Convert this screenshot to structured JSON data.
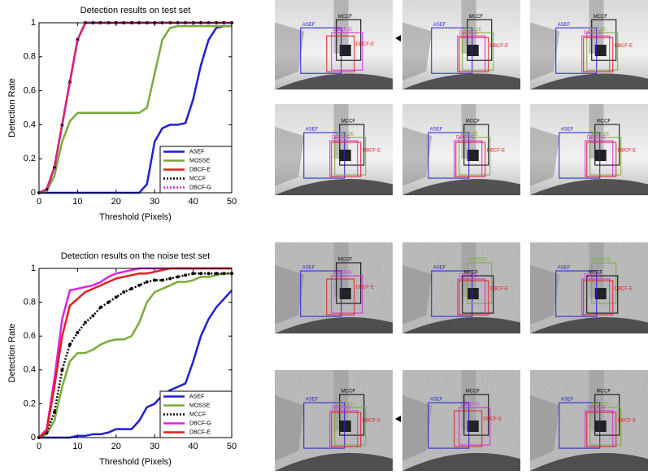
{
  "chart_data": [
    {
      "type": "line",
      "title": "Detection results on test set",
      "xlabel": "Threshold (Pixels)",
      "ylabel": "Detection Rate",
      "x": [
        0,
        2,
        4,
        6,
        8,
        10,
        12,
        14,
        16,
        18,
        20,
        22,
        24,
        26,
        28,
        30,
        32,
        34,
        36,
        38,
        40,
        42,
        44,
        46,
        48,
        50
      ],
      "xlim": [
        0,
        50
      ],
      "ylim": [
        0,
        1
      ],
      "xticks": [
        0,
        10,
        20,
        30,
        40,
        50
      ],
      "yticks": [
        0,
        0.2,
        0.4,
        0.6,
        0.8,
        1
      ],
      "legend": "lower right",
      "series": [
        {
          "name": "ASEF",
          "color": "#1f1fd6",
          "linestyle": "solid",
          "values": [
            0,
            0,
            0,
            0,
            0,
            0,
            0,
            0,
            0,
            0,
            0,
            0,
            0,
            0,
            0.05,
            0.3,
            0.38,
            0.4,
            0.4,
            0.41,
            0.55,
            0.75,
            0.9,
            0.97,
            0.98,
            0.98
          ]
        },
        {
          "name": "MOSSE",
          "color": "#7aaa3a",
          "linestyle": "solid",
          "values": [
            0,
            0.01,
            0.1,
            0.3,
            0.42,
            0.47,
            0.47,
            0.47,
            0.47,
            0.47,
            0.47,
            0.47,
            0.47,
            0.47,
            0.5,
            0.7,
            0.9,
            0.97,
            0.98,
            0.98,
            0.98,
            0.98,
            0.98,
            0.98,
            0.98,
            0.98
          ]
        },
        {
          "name": "DBCF-E",
          "color": "#e02020",
          "linestyle": "solid",
          "values": [
            0,
            0.02,
            0.15,
            0.4,
            0.65,
            0.9,
            1,
            1,
            1,
            1,
            1,
            1,
            1,
            1,
            1,
            1,
            1,
            1,
            1,
            1,
            1,
            1,
            1,
            1,
            1,
            1
          ]
        },
        {
          "name": "MCCF",
          "color": "#000000",
          "linestyle": "dotted",
          "marker": "dot",
          "values": [
            0,
            0.02,
            0.15,
            0.4,
            0.65,
            0.9,
            1,
            1,
            1,
            1,
            1,
            1,
            1,
            1,
            1,
            1,
            1,
            1,
            1,
            1,
            1,
            1,
            1,
            1,
            1,
            1
          ]
        },
        {
          "name": "DBCF-G",
          "color": "#e020e0",
          "linestyle": "dotted",
          "values": [
            0,
            0.02,
            0.15,
            0.4,
            0.65,
            0.9,
            1,
            1,
            1,
            1,
            1,
            1,
            1,
            1,
            1,
            1,
            1,
            1,
            1,
            1,
            1,
            1,
            1,
            1,
            1,
            1
          ]
        }
      ]
    },
    {
      "type": "line",
      "title": "Detection results on the noise test set",
      "xlabel": "Threshold (Pixels)",
      "ylabel": "Detection Rate",
      "x": [
        0,
        2,
        4,
        6,
        8,
        10,
        12,
        14,
        16,
        18,
        20,
        22,
        24,
        26,
        28,
        30,
        32,
        34,
        36,
        38,
        40,
        42,
        44,
        46,
        48,
        50
      ],
      "xlim": [
        0,
        50
      ],
      "ylim": [
        0,
        1
      ],
      "xticks": [
        0,
        10,
        20,
        30,
        40,
        50
      ],
      "yticks": [
        0,
        0.2,
        0.4,
        0.6,
        0.8,
        1
      ],
      "legend": "lower right",
      "series": [
        {
          "name": "ASEF",
          "color": "#1f1fd6",
          "linestyle": "solid",
          "values": [
            0,
            0,
            0,
            0,
            0,
            0.01,
            0.01,
            0.02,
            0.02,
            0.03,
            0.05,
            0.05,
            0.05,
            0.1,
            0.18,
            0.2,
            0.25,
            0.28,
            0.3,
            0.32,
            0.45,
            0.6,
            0.7,
            0.77,
            0.82,
            0.87
          ]
        },
        {
          "name": "MOSSE",
          "color": "#7aaa3a",
          "linestyle": "solid",
          "values": [
            0,
            0.02,
            0.1,
            0.3,
            0.45,
            0.5,
            0.5,
            0.52,
            0.55,
            0.57,
            0.58,
            0.58,
            0.6,
            0.68,
            0.8,
            0.86,
            0.88,
            0.9,
            0.92,
            0.92,
            0.93,
            0.95,
            0.95,
            0.96,
            0.97,
            0.97
          ]
        },
        {
          "name": "MCCF",
          "color": "#000000",
          "linestyle": "dotted",
          "marker": "dot",
          "values": [
            0,
            0.03,
            0.15,
            0.4,
            0.55,
            0.62,
            0.68,
            0.72,
            0.77,
            0.8,
            0.83,
            0.86,
            0.88,
            0.9,
            0.92,
            0.93,
            0.93,
            0.94,
            0.95,
            0.96,
            0.97,
            0.97,
            0.97,
            0.97,
            0.97,
            0.97
          ]
        },
        {
          "name": "DBCF-G",
          "color": "#e020e0",
          "linestyle": "solid",
          "values": [
            0,
            0.05,
            0.35,
            0.7,
            0.87,
            0.88,
            0.89,
            0.9,
            0.92,
            0.95,
            0.97,
            0.98,
            0.99,
            1,
            1,
            1,
            1,
            1,
            1,
            1,
            1,
            1,
            1,
            1,
            1,
            1
          ]
        },
        {
          "name": "DBCF-E",
          "color": "#e02020",
          "linestyle": "solid",
          "values": [
            0,
            0.04,
            0.3,
            0.6,
            0.78,
            0.82,
            0.86,
            0.88,
            0.9,
            0.92,
            0.94,
            0.95,
            0.96,
            0.97,
            0.97,
            0.98,
            0.99,
            1,
            1,
            1,
            1,
            1,
            1,
            1,
            1,
            1
          ]
        }
      ]
    }
  ],
  "panels": [
    [
      "ASEF",
      "MCCF",
      "DBCF-G",
      "DBCF-E"
    ],
    [
      "ASEF",
      "MCCF",
      "MOSSE",
      "DBCF-G",
      "DBCF-E"
    ],
    [
      "ASEF",
      "MCCF",
      "MOSSE",
      "DBCF-G",
      "DBCF-E"
    ],
    [
      "ASEF",
      "MCCF",
      "MOSSE",
      "DBCF-G",
      "DBCF-E"
    ],
    [
      "ASEF",
      "MCCF",
      "MOSSE",
      "DBCF-G",
      "DBCF-E"
    ],
    [
      "ASEF",
      "MCCF",
      "MOSSE",
      "DBCF-G",
      "DBCF-E"
    ],
    [
      "ASEF",
      "MCCF",
      "DBCF-G",
      "DBCF-E"
    ],
    [
      "ASEF",
      "MOSSE",
      "MCCF",
      "DBCF-G",
      "DBCF-E"
    ],
    [
      "ASEF",
      "MOSSE",
      "MCCF",
      "DBCF-G",
      "DBCF-E"
    ],
    [
      "ASEF",
      "MCCF",
      "MOSSE",
      "DBCF-G",
      "DBCF-E"
    ],
    [
      "ASEF",
      "MCCF",
      "DBCF-G",
      "DBCF-E"
    ],
    [
      "ASEF",
      "MCCF",
      "MOSSE",
      "DBCF-G",
      "DBCF-E"
    ]
  ]
}
